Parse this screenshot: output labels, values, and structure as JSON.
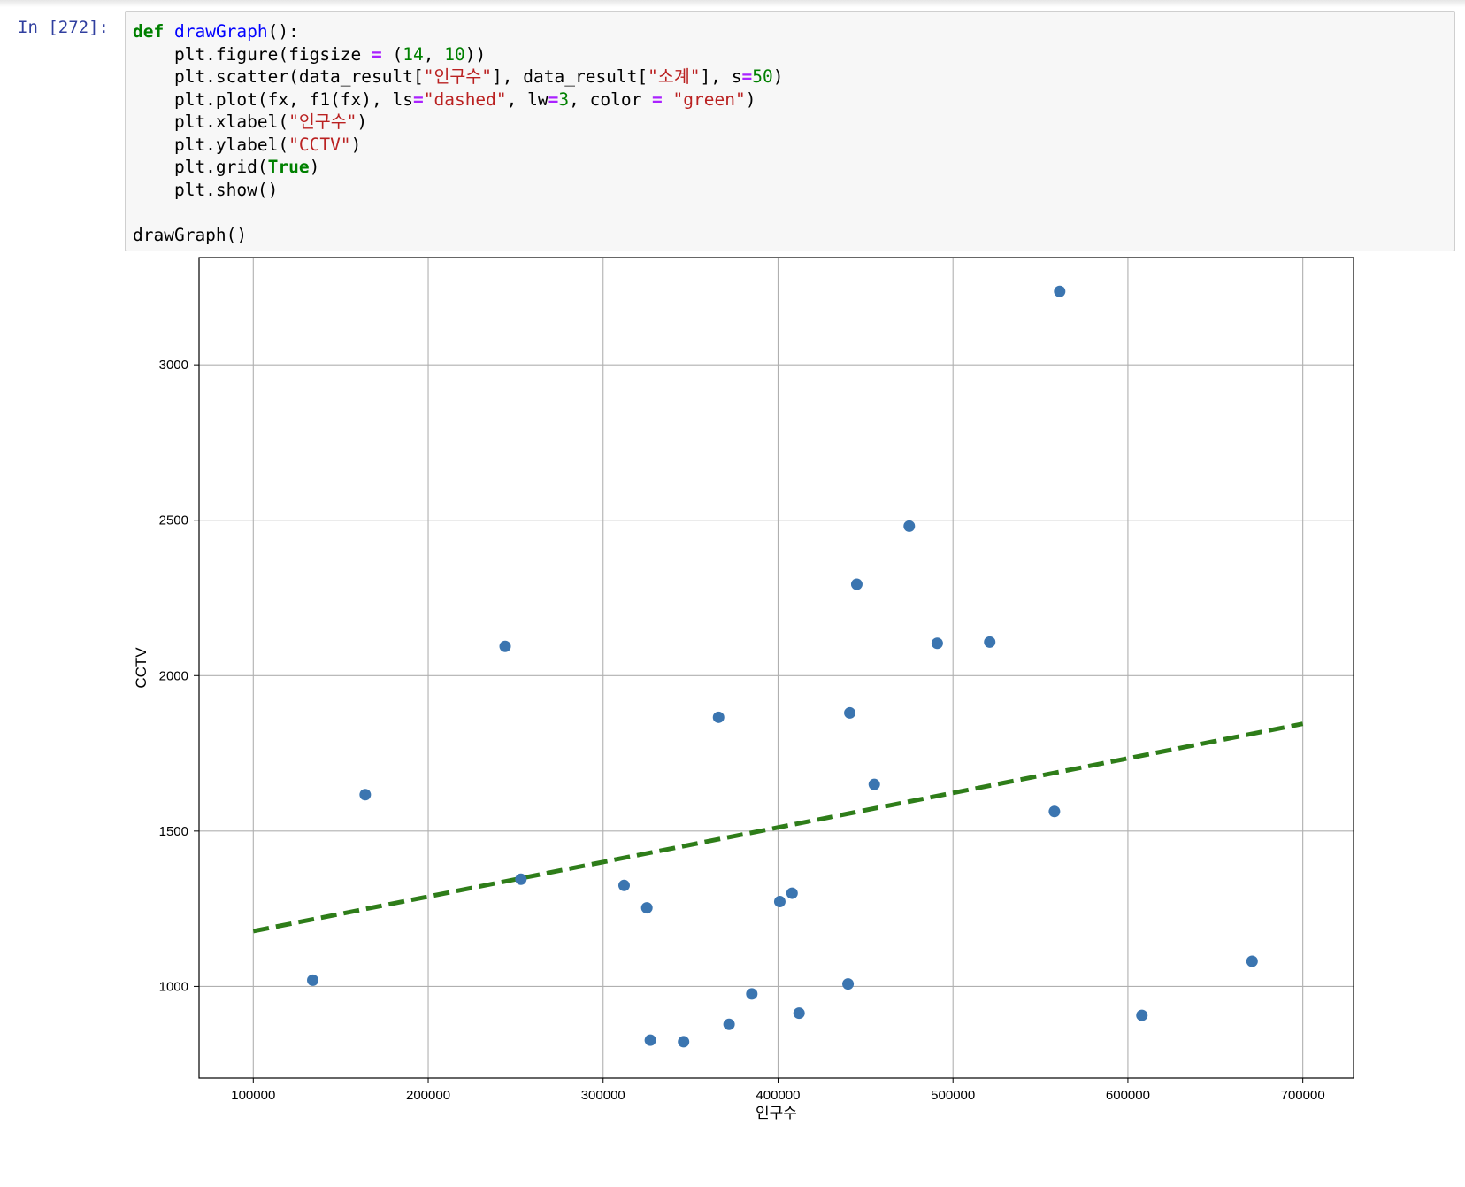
{
  "cell": {
    "prompt": "In [272]:",
    "code_lines": [
      [
        {
          "t": "def",
          "c": "kw"
        },
        {
          "t": " "
        },
        {
          "t": "drawGraph",
          "c": "fn"
        },
        {
          "t": "():"
        }
      ],
      [
        {
          "t": "    plt.figure(figsize "
        },
        {
          "t": "=",
          "c": "op"
        },
        {
          "t": " ("
        },
        {
          "t": "14",
          "c": "num"
        },
        {
          "t": ", "
        },
        {
          "t": "10",
          "c": "num"
        },
        {
          "t": "))"
        }
      ],
      [
        {
          "t": "    plt.scatter(data_result["
        },
        {
          "t": "\"인구수\"",
          "c": "str"
        },
        {
          "t": "], data_result["
        },
        {
          "t": "\"소계\"",
          "c": "str"
        },
        {
          "t": "], s"
        },
        {
          "t": "=",
          "c": "op"
        },
        {
          "t": "50",
          "c": "num"
        },
        {
          "t": ")"
        }
      ],
      [
        {
          "t": "    plt.plot(fx, f1(fx), ls"
        },
        {
          "t": "=",
          "c": "op"
        },
        {
          "t": "\"dashed\"",
          "c": "str"
        },
        {
          "t": ", lw"
        },
        {
          "t": "=",
          "c": "op"
        },
        {
          "t": "3",
          "c": "num"
        },
        {
          "t": ", color "
        },
        {
          "t": "=",
          "c": "op"
        },
        {
          "t": " "
        },
        {
          "t": "\"green\"",
          "c": "str"
        },
        {
          "t": ")"
        }
      ],
      [
        {
          "t": "    plt.xlabel("
        },
        {
          "t": "\"인구수\"",
          "c": "str"
        },
        {
          "t": ")"
        }
      ],
      [
        {
          "t": "    plt.ylabel("
        },
        {
          "t": "\"CCTV\"",
          "c": "str"
        },
        {
          "t": ")"
        }
      ],
      [
        {
          "t": "    plt.grid("
        },
        {
          "t": "True",
          "c": "kw"
        },
        {
          "t": ")"
        }
      ],
      [
        {
          "t": "    plt.show()"
        }
      ],
      [
        {
          "t": ""
        }
      ],
      [
        {
          "t": "drawGraph()"
        }
      ]
    ]
  },
  "colors": {
    "points": "#3b75b0",
    "trend_line": "#2e7d19",
    "grid": "#b0b0b0",
    "axes": "#000000"
  },
  "chart_data": {
    "type": "scatter",
    "xlabel": "인구수",
    "ylabel": "CCTV",
    "grid": true,
    "xlim": [
      69000,
      729000
    ],
    "ylim": [
      705,
      3345
    ],
    "xticks": [
      100000,
      200000,
      300000,
      400000,
      500000,
      600000,
      700000
    ],
    "yticks": [
      1000,
      1500,
      2000,
      2500,
      3000
    ],
    "series": [
      {
        "kind": "scatter",
        "points": [
          [
            134000,
            1020
          ],
          [
            164000,
            1617
          ],
          [
            244000,
            2094
          ],
          [
            253000,
            1345
          ],
          [
            312000,
            1325
          ],
          [
            325000,
            1253
          ],
          [
            327000,
            827
          ],
          [
            346000,
            822
          ],
          [
            366000,
            1866
          ],
          [
            372000,
            878
          ],
          [
            385000,
            976
          ],
          [
            401000,
            1273
          ],
          [
            408000,
            1300
          ],
          [
            412000,
            914
          ],
          [
            440000,
            1008
          ],
          [
            441000,
            1880
          ],
          [
            445000,
            2294
          ],
          [
            455000,
            1650
          ],
          [
            475000,
            2481
          ],
          [
            491000,
            2104
          ],
          [
            521000,
            2108
          ],
          [
            558000,
            1563
          ],
          [
            561000,
            3236
          ],
          [
            608000,
            907
          ],
          [
            671000,
            1081
          ]
        ]
      },
      {
        "kind": "line",
        "style": "dashed",
        "points": [
          [
            100000,
            1178
          ],
          [
            700000,
            1845
          ]
        ]
      }
    ]
  }
}
